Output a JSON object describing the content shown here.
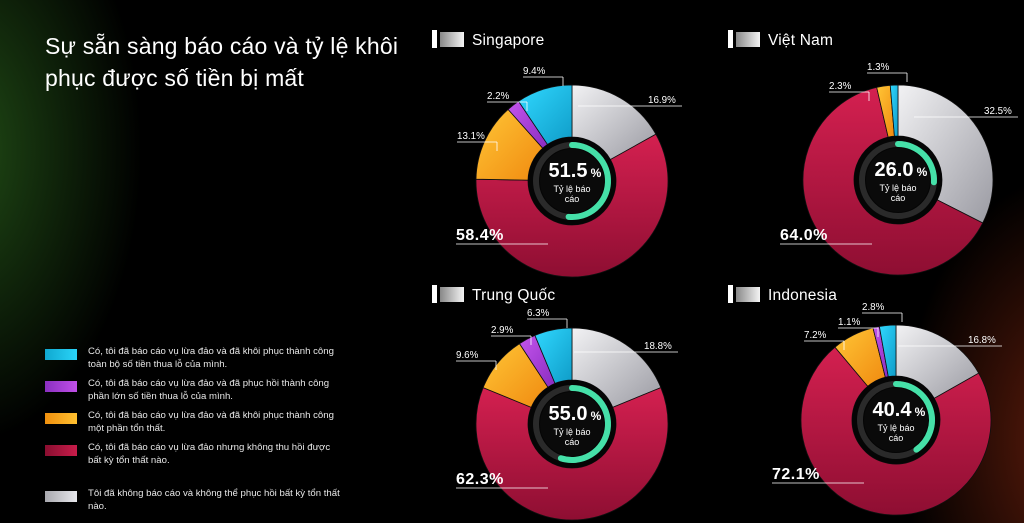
{
  "title": "Sự sẵn sàng báo cáo và tỷ lệ khôi phục được số tiền bị mất",
  "colors": {
    "full_recovery": "#19c6ee",
    "majority_recovery": "#b33fd8",
    "partial_recovery": "#f6a31e",
    "no_recovery": "#b31642",
    "not_reported": "#d0d0d4",
    "ring_track": "#2a2a2a",
    "ring_progress": "#45e0a8"
  },
  "legend": [
    {
      "key": "full_recovery",
      "label": "Có, tôi đã báo cáo vụ lừa đảo và đã khôi phục thành công toàn bộ số tiền thua lỗ của mình."
    },
    {
      "key": "majority_recovery",
      "label": "Có, tôi đã báo cáo vụ lừa đảo và đã phục hồi thành công phần lớn số tiền thua lỗ của mình."
    },
    {
      "key": "partial_recovery",
      "label": "Có, tôi đã báo cáo vụ lừa đảo và đã khôi phục thành công một phần tổn thất."
    },
    {
      "key": "no_recovery",
      "label": "Có, tôi đã báo cáo vụ lừa đảo nhưng không thu hồi được bất kỳ tổn thất nào."
    },
    {
      "key": "not_reported",
      "label": "Tôi đã không báo cáo và không thể phục hồi bất kỳ tổn thất nào."
    }
  ],
  "chart_data": [
    {
      "type": "pie",
      "title": "Singapore",
      "categories": [
        "full_recovery",
        "majority_recovery",
        "partial_recovery",
        "no_recovery",
        "not_reported"
      ],
      "values": [
        9.4,
        2.2,
        13.1,
        58.4,
        16.9
      ],
      "labels": [
        "9.4%",
        "2.2%",
        "13.1%",
        "58.4%",
        "16.9%"
      ],
      "center_value": "51.5",
      "center_unit": "%",
      "center_label": [
        "Tỷ lệ báo",
        "cáo"
      ],
      "reporting_rate": 51.5
    },
    {
      "type": "pie",
      "title": "Việt Nam",
      "categories": [
        "full_recovery",
        "majority_recovery",
        "partial_recovery",
        "no_recovery",
        "not_reported"
      ],
      "values": [
        1.3,
        0,
        2.3,
        64.0,
        32.5
      ],
      "labels": [
        "1.3%",
        "",
        "2.3%",
        "64.0%",
        "32.5%"
      ],
      "center_value": "26.0",
      "center_unit": "%",
      "center_label": [
        "Tỷ lệ báo",
        "cáo"
      ],
      "reporting_rate": 26.0
    },
    {
      "type": "pie",
      "title": "Trung Quốc",
      "categories": [
        "full_recovery",
        "majority_recovery",
        "partial_recovery",
        "no_recovery",
        "not_reported"
      ],
      "values": [
        6.3,
        2.9,
        9.6,
        62.3,
        18.8
      ],
      "labels": [
        "6.3%",
        "2.9%",
        "9.6%",
        "62.3%",
        "18.8%"
      ],
      "center_value": "55.0",
      "center_unit": "%",
      "center_label": [
        "Tỷ lệ báo",
        "cáo"
      ],
      "reporting_rate": 55.0
    },
    {
      "type": "pie",
      "title": "Indonesia",
      "categories": [
        "full_recovery",
        "majority_recovery",
        "partial_recovery",
        "no_recovery",
        "not_reported"
      ],
      "values": [
        2.8,
        1.1,
        7.2,
        72.1,
        16.8
      ],
      "labels": [
        "2.8%",
        "1.1%",
        "7.2%",
        "72.1%",
        "16.8%"
      ],
      "center_value": "40.4",
      "center_unit": "%",
      "center_label": [
        "Tỷ lệ báo",
        "cáo"
      ],
      "reporting_rate": 40.4
    }
  ]
}
